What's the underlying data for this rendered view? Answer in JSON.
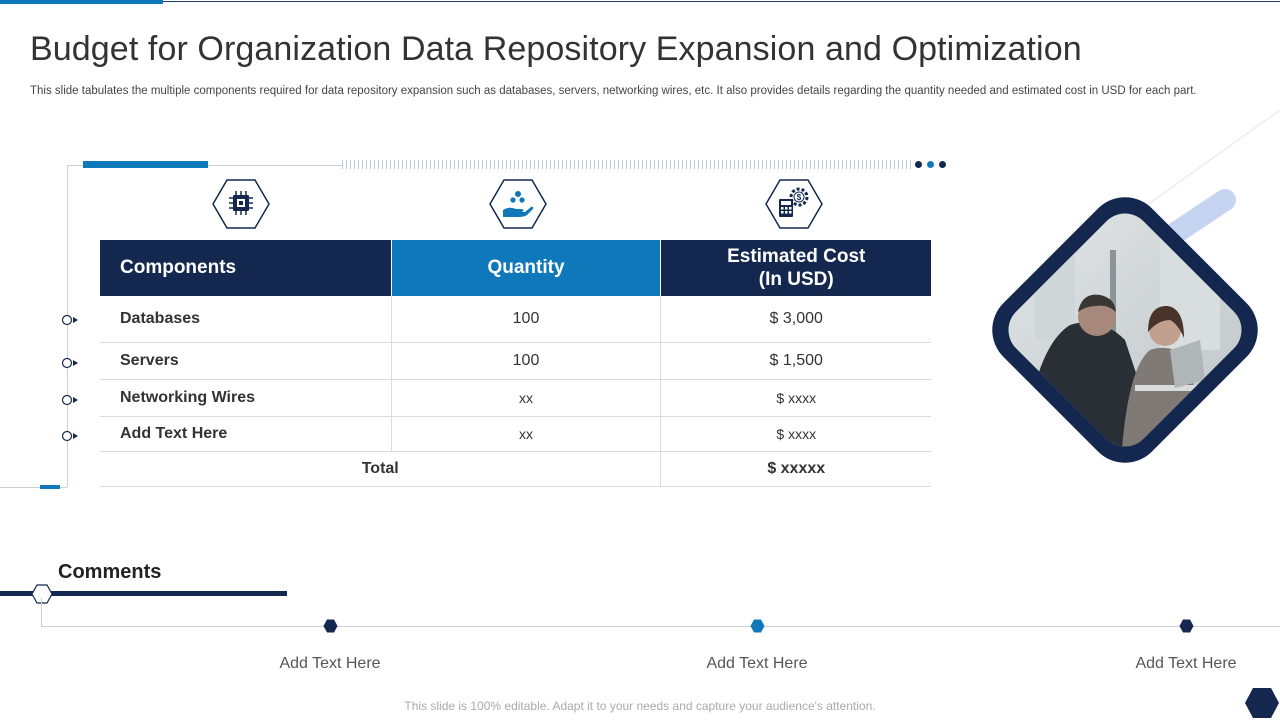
{
  "slide": {
    "title": "Budget for Organization Data Repository Expansion and Optimization",
    "subtitle": "This slide tabulates the multiple components required for data repository expansion such as databases, servers, networking wires, etc. It also provides details regarding the quantity needed and estimated cost in USD for each part."
  },
  "table": {
    "headers": {
      "components": "Components",
      "quantity": "Quantity",
      "cost_line1": "Estimated Cost",
      "cost_line2": "(In USD)"
    },
    "rows": [
      {
        "component": "Databases",
        "quantity": "100",
        "cost": "$ 3,000"
      },
      {
        "component": "Servers",
        "quantity": "100",
        "cost": "$ 1,500"
      },
      {
        "component": "Networking Wires",
        "quantity": "xx",
        "cost": "$ xxxx"
      },
      {
        "component": "Add  Text Here",
        "quantity": "xx",
        "cost": "$ xxxx"
      }
    ],
    "total_label": "Total",
    "total_value": "$ xxxxx"
  },
  "icons": [
    "processor-chip-icon",
    "hand-with-drops-icon",
    "calculator-cost-gear-icon"
  ],
  "comments": {
    "title": "Comments",
    "items": [
      "Add Text Here",
      "Add Text Here",
      "Add Text Here"
    ]
  },
  "footer": "This slide is 100% editable. Adapt it to your needs and capture your audience's attention.",
  "colors": {
    "navy": "#14284f",
    "blue": "#0e78bb",
    "light_blue": "#c5d4f0"
  }
}
